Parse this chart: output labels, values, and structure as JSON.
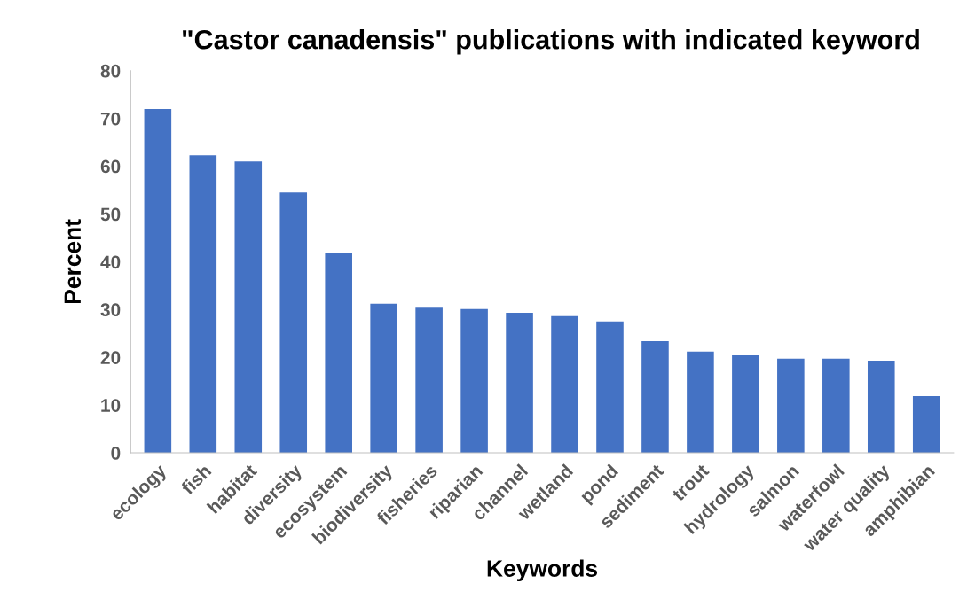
{
  "chart_data": {
    "type": "bar",
    "title": "\"Castor canadensis\" publications with indicated keyword",
    "xlabel": "Keywords",
    "ylabel": "Percent",
    "categories": [
      "ecology",
      "fish",
      "habitat",
      "diversity",
      "ecosystem",
      "biodiversity",
      "fisheries",
      "riparian",
      "channel",
      "wetland",
      "pond",
      "sediment",
      "trout",
      "hydrology",
      "salmon",
      "waterfowl",
      "water quality",
      "amphibian"
    ],
    "values": [
      72.0,
      62.3,
      61.0,
      54.5,
      41.9,
      31.2,
      30.4,
      30.1,
      29.3,
      28.6,
      27.5,
      23.4,
      21.2,
      20.4,
      19.7,
      19.7,
      19.3,
      11.9
    ],
    "color": "#4472c4",
    "ylim": [
      0,
      80
    ],
    "yticks": [
      0,
      10,
      20,
      30,
      40,
      50,
      60,
      70,
      80
    ],
    "grid": false,
    "legend": false
  }
}
